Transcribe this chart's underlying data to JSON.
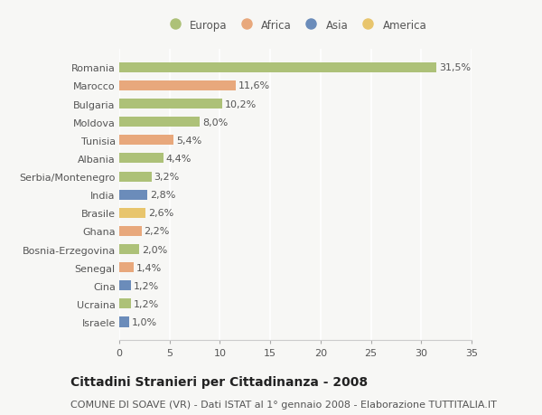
{
  "countries": [
    "Romania",
    "Marocco",
    "Bulgaria",
    "Moldova",
    "Tunisia",
    "Albania",
    "Serbia/Montenegro",
    "India",
    "Brasile",
    "Ghana",
    "Bosnia-Erzegovina",
    "Senegal",
    "Cina",
    "Ucraina",
    "Israele"
  ],
  "values": [
    31.5,
    11.6,
    10.2,
    8.0,
    5.4,
    4.4,
    3.2,
    2.8,
    2.6,
    2.2,
    2.0,
    1.4,
    1.2,
    1.2,
    1.0
  ],
  "labels": [
    "31,5%",
    "11,6%",
    "10,2%",
    "8,0%",
    "5,4%",
    "4,4%",
    "3,2%",
    "2,8%",
    "2,6%",
    "2,2%",
    "2,0%",
    "1,4%",
    "1,2%",
    "1,2%",
    "1,0%"
  ],
  "colors": [
    "#adc178",
    "#e8a87c",
    "#adc178",
    "#adc178",
    "#e8a87c",
    "#adc178",
    "#adc178",
    "#6b8cba",
    "#e8c56d",
    "#e8a87c",
    "#adc178",
    "#e8a87c",
    "#6b8cba",
    "#adc178",
    "#6b8cba"
  ],
  "legend_labels": [
    "Europa",
    "Africa",
    "Asia",
    "America"
  ],
  "legend_colors": [
    "#adc178",
    "#e8a87c",
    "#6b8cba",
    "#e8c56d"
  ],
  "xlim": [
    0,
    35
  ],
  "xticks": [
    0,
    5,
    10,
    15,
    20,
    25,
    30,
    35
  ],
  "title": "Cittadini Stranieri per Cittadinanza - 2008",
  "subtitle": "COMUNE DI SOAVE (VR) - Dati ISTAT al 1° gennaio 2008 - Elaborazione TUTTITALIA.IT",
  "bg_color": "#f7f7f5",
  "bar_height": 0.55,
  "label_fontsize": 8,
  "ytick_fontsize": 8,
  "xtick_fontsize": 8,
  "title_fontsize": 10,
  "subtitle_fontsize": 8,
  "legend_fontsize": 8.5
}
